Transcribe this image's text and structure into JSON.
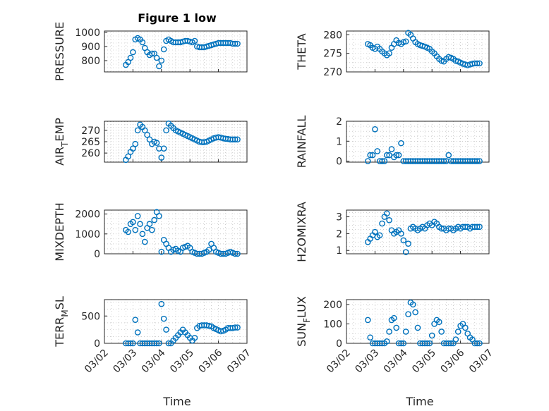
{
  "figure": {
    "title": "Figure 1 low",
    "xlabel": "Time",
    "xticks": [
      "03/02",
      "03/03",
      "03/04",
      "03/05",
      "03/06",
      "03/07"
    ],
    "marker_color": "#0072BD"
  },
  "chart_data": [
    {
      "type": "scatter",
      "ylabel": "PRESSURE",
      "ylabel_main": "PRESSURE",
      "ylabel_sub": "",
      "ylabel_tail": "",
      "yticks": [
        "800",
        "900",
        "1000"
      ],
      "ylim": [
        720,
        1010
      ],
      "series": [
        {
          "x": [
            "03/02 18:00",
            "03/02 20:00",
            "03/02 22:00",
            "03/03 00:00",
            "03/03 02:00",
            "03/03 04:00",
            "03/03 06:00",
            "03/03 08:00",
            "03/03 10:00",
            "03/03 12:00",
            "03/03 14:00",
            "03/03 16:00",
            "03/03 18:00",
            "03/03 20:00",
            "03/03 22:00",
            "03/04 00:00",
            "03/04 02:00",
            "03/04 04:00",
            "03/04 06:00",
            "03/04 08:00",
            "03/04 10:00",
            "03/04 12:00",
            "03/04 14:00",
            "03/04 16:00",
            "03/04 18:00",
            "03/04 20:00",
            "03/04 22:00",
            "03/05 00:00",
            "03/05 02:00",
            "03/05 04:00",
            "03/05 06:00",
            "03/05 08:00",
            "03/05 10:00",
            "03/05 12:00",
            "03/05 14:00",
            "03/05 16:00",
            "03/05 18:00",
            "03/05 20:00",
            "03/05 22:00",
            "03/06 00:00",
            "03/06 02:00",
            "03/06 04:00",
            "03/06 06:00",
            "03/06 08:00",
            "03/06 10:00",
            "03/06 12:00",
            "03/06 14:00",
            "03/06 16:00"
          ],
          "y": [
            770,
            790,
            820,
            860,
            950,
            960,
            950,
            930,
            890,
            860,
            840,
            850,
            850,
            820,
            760,
            800,
            880,
            940,
            950,
            940,
            930,
            930,
            930,
            930,
            935,
            940,
            940,
            935,
            930,
            940,
            900,
            895,
            895,
            895,
            900,
            905,
            910,
            915,
            920,
            925,
            925,
            925,
            925,
            925,
            925,
            920,
            920,
            920
          ]
        }
      ]
    },
    {
      "type": "scatter",
      "ylabel": "THETA",
      "ylabel_main": "THETA",
      "ylabel_sub": "",
      "ylabel_tail": "",
      "yticks": [
        "270",
        "275",
        "280"
      ],
      "ylim": [
        270,
        281
      ],
      "series": [
        {
          "x": [
            "03/02 18:00",
            "03/02 20:00",
            "03/02 22:00",
            "03/03 00:00",
            "03/03 02:00",
            "03/03 04:00",
            "03/03 06:00",
            "03/03 08:00",
            "03/03 10:00",
            "03/03 12:00",
            "03/03 14:00",
            "03/03 16:00",
            "03/03 18:00",
            "03/03 20:00",
            "03/03 22:00",
            "03/04 00:00",
            "03/04 02:00",
            "03/04 04:00",
            "03/04 06:00",
            "03/04 08:00",
            "03/04 10:00",
            "03/04 12:00",
            "03/04 14:00",
            "03/04 16:00",
            "03/04 18:00",
            "03/04 20:00",
            "03/04 22:00",
            "03/05 00:00",
            "03/05 02:00",
            "03/05 04:00",
            "03/05 06:00",
            "03/05 08:00",
            "03/05 10:00",
            "03/05 12:00",
            "03/05 14:00",
            "03/05 16:00",
            "03/05 18:00",
            "03/05 20:00",
            "03/05 22:00",
            "03/06 00:00",
            "03/06 02:00",
            "03/06 04:00",
            "03/06 06:00",
            "03/06 08:00",
            "03/06 10:00",
            "03/06 12:00",
            "03/06 14:00",
            "03/06 16:00"
          ],
          "y": [
            277.5,
            277.2,
            276.5,
            276.2,
            276.8,
            276.2,
            275.5,
            275,
            274.5,
            275,
            276.5,
            277.5,
            278.5,
            277.8,
            277.5,
            278,
            278.2,
            280.5,
            280,
            279,
            278,
            277.5,
            277.2,
            277,
            276.8,
            276.5,
            276.2,
            275.5,
            275,
            274.2,
            273.5,
            273,
            272.8,
            273.5,
            274,
            273.8,
            273.5,
            273,
            272.8,
            272.5,
            272.2,
            272,
            271.8,
            272,
            272.2,
            272.3,
            272.3,
            272.3
          ]
        }
      ]
    },
    {
      "type": "scatter",
      "ylabel": "AIR_TEMP",
      "ylabel_main": "AIR",
      "ylabel_sub": "T",
      "ylabel_tail": "EMP",
      "yticks": [
        "260",
        "265",
        "270"
      ],
      "ylim": [
        256,
        274
      ],
      "series": [
        {
          "x": [
            "03/02 18:00",
            "03/02 20:00",
            "03/02 22:00",
            "03/03 00:00",
            "03/03 02:00",
            "03/03 04:00",
            "03/03 06:00",
            "03/03 08:00",
            "03/03 10:00",
            "03/03 12:00",
            "03/03 14:00",
            "03/03 16:00",
            "03/03 18:00",
            "03/03 20:00",
            "03/03 22:00",
            "03/04 00:00",
            "03/04 02:00",
            "03/04 04:00",
            "03/04 06:00",
            "03/04 08:00",
            "03/04 10:00",
            "03/04 12:00",
            "03/04 14:00",
            "03/04 16:00",
            "03/04 18:00",
            "03/04 20:00",
            "03/04 22:00",
            "03/05 00:00",
            "03/05 02:00",
            "03/05 04:00",
            "03/05 06:00",
            "03/05 08:00",
            "03/05 10:00",
            "03/05 12:00",
            "03/05 14:00",
            "03/05 16:00",
            "03/05 18:00",
            "03/05 20:00",
            "03/05 22:00",
            "03/06 00:00",
            "03/06 02:00",
            "03/06 04:00",
            "03/06 06:00",
            "03/06 08:00",
            "03/06 10:00",
            "03/06 12:00",
            "03/06 14:00",
            "03/06 16:00"
          ],
          "y": [
            257,
            258.5,
            260.5,
            262,
            264,
            270,
            272.5,
            271.5,
            270,
            268,
            266,
            264,
            265,
            264.5,
            262,
            258,
            262,
            270,
            273,
            272,
            271,
            270,
            269.5,
            269,
            268.5,
            268,
            267.5,
            267,
            266.5,
            266,
            265.5,
            265,
            264.8,
            264.8,
            265,
            265.5,
            266,
            266.5,
            266.8,
            267,
            266.8,
            266.5,
            266.3,
            266.2,
            266,
            266,
            266,
            266
          ]
        }
      ]
    },
    {
      "type": "scatter",
      "ylabel": "RAINFALL",
      "ylabel_main": "RAINFALL",
      "ylabel_sub": "",
      "ylabel_tail": "",
      "yticks": [
        "0",
        "1",
        "2"
      ],
      "ylim": [
        -0.05,
        2
      ],
      "series": [
        {
          "x": [
            "03/02 18:00",
            "03/02 20:00",
            "03/02 22:00",
            "03/03 00:00",
            "03/03 02:00",
            "03/03 04:00",
            "03/03 06:00",
            "03/03 08:00",
            "03/03 10:00",
            "03/03 12:00",
            "03/03 14:00",
            "03/03 16:00",
            "03/03 18:00",
            "03/03 20:00",
            "03/03 22:00",
            "03/04 00:00",
            "03/04 02:00",
            "03/04 04:00",
            "03/04 06:00",
            "03/04 08:00",
            "03/04 10:00",
            "03/04 12:00",
            "03/04 14:00",
            "03/04 16:00",
            "03/04 18:00",
            "03/04 20:00",
            "03/04 22:00",
            "03/05 00:00",
            "03/05 02:00",
            "03/05 04:00",
            "03/05 06:00",
            "03/05 08:00",
            "03/05 10:00",
            "03/05 12:00",
            "03/05 14:00",
            "03/05 16:00",
            "03/05 18:00",
            "03/05 20:00",
            "03/05 22:00",
            "03/06 00:00",
            "03/06 02:00",
            "03/06 04:00",
            "03/06 06:00",
            "03/06 08:00",
            "03/06 10:00",
            "03/06 12:00",
            "03/06 14:00",
            "03/06 16:00"
          ],
          "y": [
            0,
            0.3,
            0.3,
            1.6,
            0.5,
            0,
            0,
            0,
            0.3,
            0.3,
            0.6,
            0.2,
            0.3,
            0.3,
            0.9,
            0,
            0,
            0,
            0,
            0,
            0,
            0,
            0,
            0,
            0,
            0,
            0,
            0,
            0,
            0,
            0,
            0,
            0,
            0,
            0.3,
            0,
            0,
            0,
            0,
            0,
            0,
            0,
            0,
            0,
            0,
            0,
            0,
            0
          ]
        }
      ]
    },
    {
      "type": "scatter",
      "ylabel": "MIXDEPTH",
      "ylabel_main": "MIXDEPTH",
      "ylabel_sub": "",
      "ylabel_tail": "",
      "yticks": [
        "0",
        "1000",
        "2000"
      ],
      "ylim": [
        0,
        2200
      ],
      "series": [
        {
          "x": [
            "03/02 18:00",
            "03/02 20:00",
            "03/02 22:00",
            "03/03 00:00",
            "03/03 02:00",
            "03/03 04:00",
            "03/03 06:00",
            "03/03 08:00",
            "03/03 10:00",
            "03/03 12:00",
            "03/03 14:00",
            "03/03 16:00",
            "03/03 18:00",
            "03/03 20:00",
            "03/03 22:00",
            "03/04 00:00",
            "03/04 02:00",
            "03/04 04:00",
            "03/04 06:00",
            "03/04 08:00",
            "03/04 10:00",
            "03/04 12:00",
            "03/04 14:00",
            "03/04 16:00",
            "03/04 18:00",
            "03/04 20:00",
            "03/04 22:00",
            "03/05 00:00",
            "03/05 02:00",
            "03/05 04:00",
            "03/05 06:00",
            "03/05 08:00",
            "03/05 10:00",
            "03/05 12:00",
            "03/05 14:00",
            "03/05 16:00",
            "03/05 18:00",
            "03/05 20:00",
            "03/05 22:00",
            "03/06 00:00",
            "03/06 02:00",
            "03/06 04:00",
            "03/06 06:00",
            "03/06 08:00",
            "03/06 10:00",
            "03/06 12:00",
            "03/06 14:00",
            "03/06 16:00"
          ],
          "y": [
            1200,
            1100,
            1500,
            1600,
            1200,
            1900,
            1500,
            1000,
            600,
            1300,
            1500,
            1200,
            1700,
            2100,
            1900,
            100,
            700,
            500,
            300,
            100,
            200,
            250,
            150,
            100,
            300,
            350,
            400,
            300,
            100,
            50,
            0,
            0,
            0,
            50,
            100,
            200,
            500,
            300,
            100,
            50,
            0,
            0,
            0,
            50,
            100,
            50,
            0,
            0
          ]
        }
      ]
    },
    {
      "type": "scatter",
      "ylabel": "H2OMIXRA",
      "ylabel_main": "H2OMIXRA",
      "ylabel_sub": "",
      "ylabel_tail": "",
      "yticks": [
        "1",
        "2",
        "3"
      ],
      "ylim": [
        0.8,
        3.4
      ],
      "series": [
        {
          "x": [
            "03/02 18:00",
            "03/02 20:00",
            "03/02 22:00",
            "03/03 00:00",
            "03/03 02:00",
            "03/03 04:00",
            "03/03 06:00",
            "03/03 08:00",
            "03/03 10:00",
            "03/03 12:00",
            "03/03 14:00",
            "03/03 16:00",
            "03/03 18:00",
            "03/03 20:00",
            "03/03 22:00",
            "03/04 00:00",
            "03/04 02:00",
            "03/04 04:00",
            "03/04 06:00",
            "03/04 08:00",
            "03/04 10:00",
            "03/04 12:00",
            "03/04 14:00",
            "03/04 16:00",
            "03/04 18:00",
            "03/04 20:00",
            "03/04 22:00",
            "03/05 00:00",
            "03/05 02:00",
            "03/05 04:00",
            "03/05 06:00",
            "03/05 08:00",
            "03/05 10:00",
            "03/05 12:00",
            "03/05 14:00",
            "03/05 16:00",
            "03/05 18:00",
            "03/05 20:00",
            "03/05 22:00",
            "03/06 00:00",
            "03/06 02:00",
            "03/06 04:00",
            "03/06 06:00",
            "03/06 08:00",
            "03/06 10:00",
            "03/06 12:00",
            "03/06 14:00",
            "03/06 16:00"
          ],
          "y": [
            1.5,
            1.7,
            1.9,
            2.1,
            1.8,
            1.9,
            2.6,
            3,
            3.2,
            2.8,
            2.2,
            2,
            2.1,
            2.2,
            2,
            1.6,
            0.9,
            1.4,
            2.3,
            2.4,
            2.3,
            2.2,
            2.3,
            2.4,
            2.3,
            2.5,
            2.6,
            2.5,
            2.7,
            2.6,
            2.4,
            2.3,
            2.3,
            2.2,
            2.3,
            2.3,
            2.2,
            2.3,
            2.4,
            2.3,
            2.4,
            2.4,
            2.4,
            2.3,
            2.4,
            2.4,
            2.4,
            2.4
          ]
        }
      ]
    },
    {
      "type": "scatter",
      "ylabel": "TERR_MSL",
      "ylabel_main": "TERR",
      "ylabel_sub": "M",
      "ylabel_tail": "SL",
      "yticks": [
        "0",
        "500"
      ],
      "ylim": [
        0,
        800
      ],
      "series": [
        {
          "x": [
            "03/02 18:00",
            "03/02 20:00",
            "03/02 22:00",
            "03/03 00:00",
            "03/03 02:00",
            "03/03 04:00",
            "03/03 06:00",
            "03/03 08:00",
            "03/03 10:00",
            "03/03 12:00",
            "03/03 14:00",
            "03/03 16:00",
            "03/03 18:00",
            "03/03 20:00",
            "03/03 22:00",
            "03/04 00:00",
            "03/04 02:00",
            "03/04 04:00",
            "03/04 06:00",
            "03/04 08:00",
            "03/04 10:00",
            "03/04 12:00",
            "03/04 14:00",
            "03/04 16:00",
            "03/04 18:00",
            "03/04 20:00",
            "03/04 22:00",
            "03/05 00:00",
            "03/05 02:00",
            "03/05 04:00",
            "03/05 06:00",
            "03/05 08:00",
            "03/05 10:00",
            "03/05 12:00",
            "03/05 14:00",
            "03/05 16:00",
            "03/05 18:00",
            "03/05 20:00",
            "03/05 22:00",
            "03/06 00:00",
            "03/06 02:00",
            "03/06 04:00",
            "03/06 06:00",
            "03/06 08:00",
            "03/06 10:00",
            "03/06 12:00",
            "03/06 14:00",
            "03/06 16:00"
          ],
          "y": [
            0,
            0,
            0,
            0,
            430,
            200,
            0,
            0,
            0,
            0,
            0,
            0,
            0,
            0,
            0,
            720,
            450,
            250,
            0,
            0,
            50,
            100,
            150,
            200,
            250,
            200,
            150,
            100,
            50,
            100,
            280,
            320,
            330,
            330,
            330,
            320,
            310,
            280,
            260,
            240,
            220,
            230,
            250,
            280,
            280,
            280,
            290,
            290
          ]
        }
      ]
    },
    {
      "type": "scatter",
      "ylabel": "SUN_FLUX",
      "ylabel_main": "SUN",
      "ylabel_sub": "F",
      "ylabel_tail": "LUX",
      "yticks": [
        "0",
        "100",
        "200"
      ],
      "ylim": [
        0,
        225
      ],
      "series": [
        {
          "x": [
            "03/02 18:00",
            "03/02 20:00",
            "03/02 22:00",
            "03/03 00:00",
            "03/03 02:00",
            "03/03 04:00",
            "03/03 06:00",
            "03/03 08:00",
            "03/03 10:00",
            "03/03 12:00",
            "03/03 14:00",
            "03/03 16:00",
            "03/03 18:00",
            "03/03 20:00",
            "03/03 22:00",
            "03/04 00:00",
            "03/04 02:00",
            "03/04 04:00",
            "03/04 06:00",
            "03/04 08:00",
            "03/04 10:00",
            "03/04 12:00",
            "03/04 14:00",
            "03/04 16:00",
            "03/04 18:00",
            "03/04 20:00",
            "03/04 22:00",
            "03/05 00:00",
            "03/05 02:00",
            "03/05 04:00",
            "03/05 06:00",
            "03/05 08:00",
            "03/05 10:00",
            "03/05 12:00",
            "03/05 14:00",
            "03/05 16:00",
            "03/05 18:00",
            "03/05 20:00",
            "03/05 22:00",
            "03/06 00:00",
            "03/06 02:00",
            "03/06 04:00",
            "03/06 06:00",
            "03/06 08:00",
            "03/06 10:00",
            "03/06 12:00",
            "03/06 14:00",
            "03/06 16:00"
          ],
          "y": [
            120,
            30,
            0,
            0,
            0,
            0,
            0,
            0,
            10,
            60,
            120,
            130,
            80,
            0,
            0,
            0,
            60,
            150,
            210,
            200,
            160,
            80,
            0,
            0,
            0,
            0,
            0,
            40,
            100,
            120,
            110,
            60,
            0,
            0,
            0,
            0,
            0,
            20,
            60,
            90,
            100,
            80,
            50,
            30,
            20,
            0,
            0,
            0
          ]
        }
      ]
    }
  ]
}
